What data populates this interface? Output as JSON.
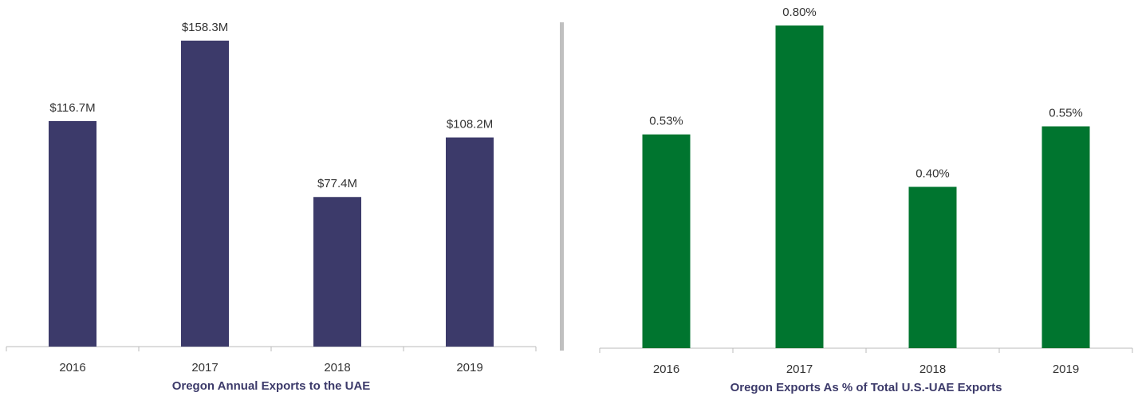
{
  "chart_data": [
    {
      "type": "bar",
      "title": "Oregon Annual Exports to the UAE",
      "categories": [
        "2016",
        "2017",
        "2018",
        "2019"
      ],
      "values": [
        116.7,
        158.3,
        77.4,
        108.2
      ],
      "value_labels": [
        "$116.7M",
        "$158.3M",
        "$77.4M",
        "$108.2M"
      ],
      "color": "#3c3a6a"
    },
    {
      "type": "bar",
      "title": "Oregon Exports As % of Total U.S.-UAE Exports",
      "categories": [
        "2016",
        "2017",
        "2018",
        "2019"
      ],
      "values": [
        0.53,
        0.8,
        0.4,
        0.55
      ],
      "value_labels": [
        "0.53%",
        "0.80%",
        "0.40%",
        "0.55%"
      ],
      "color": "#00752f"
    }
  ]
}
